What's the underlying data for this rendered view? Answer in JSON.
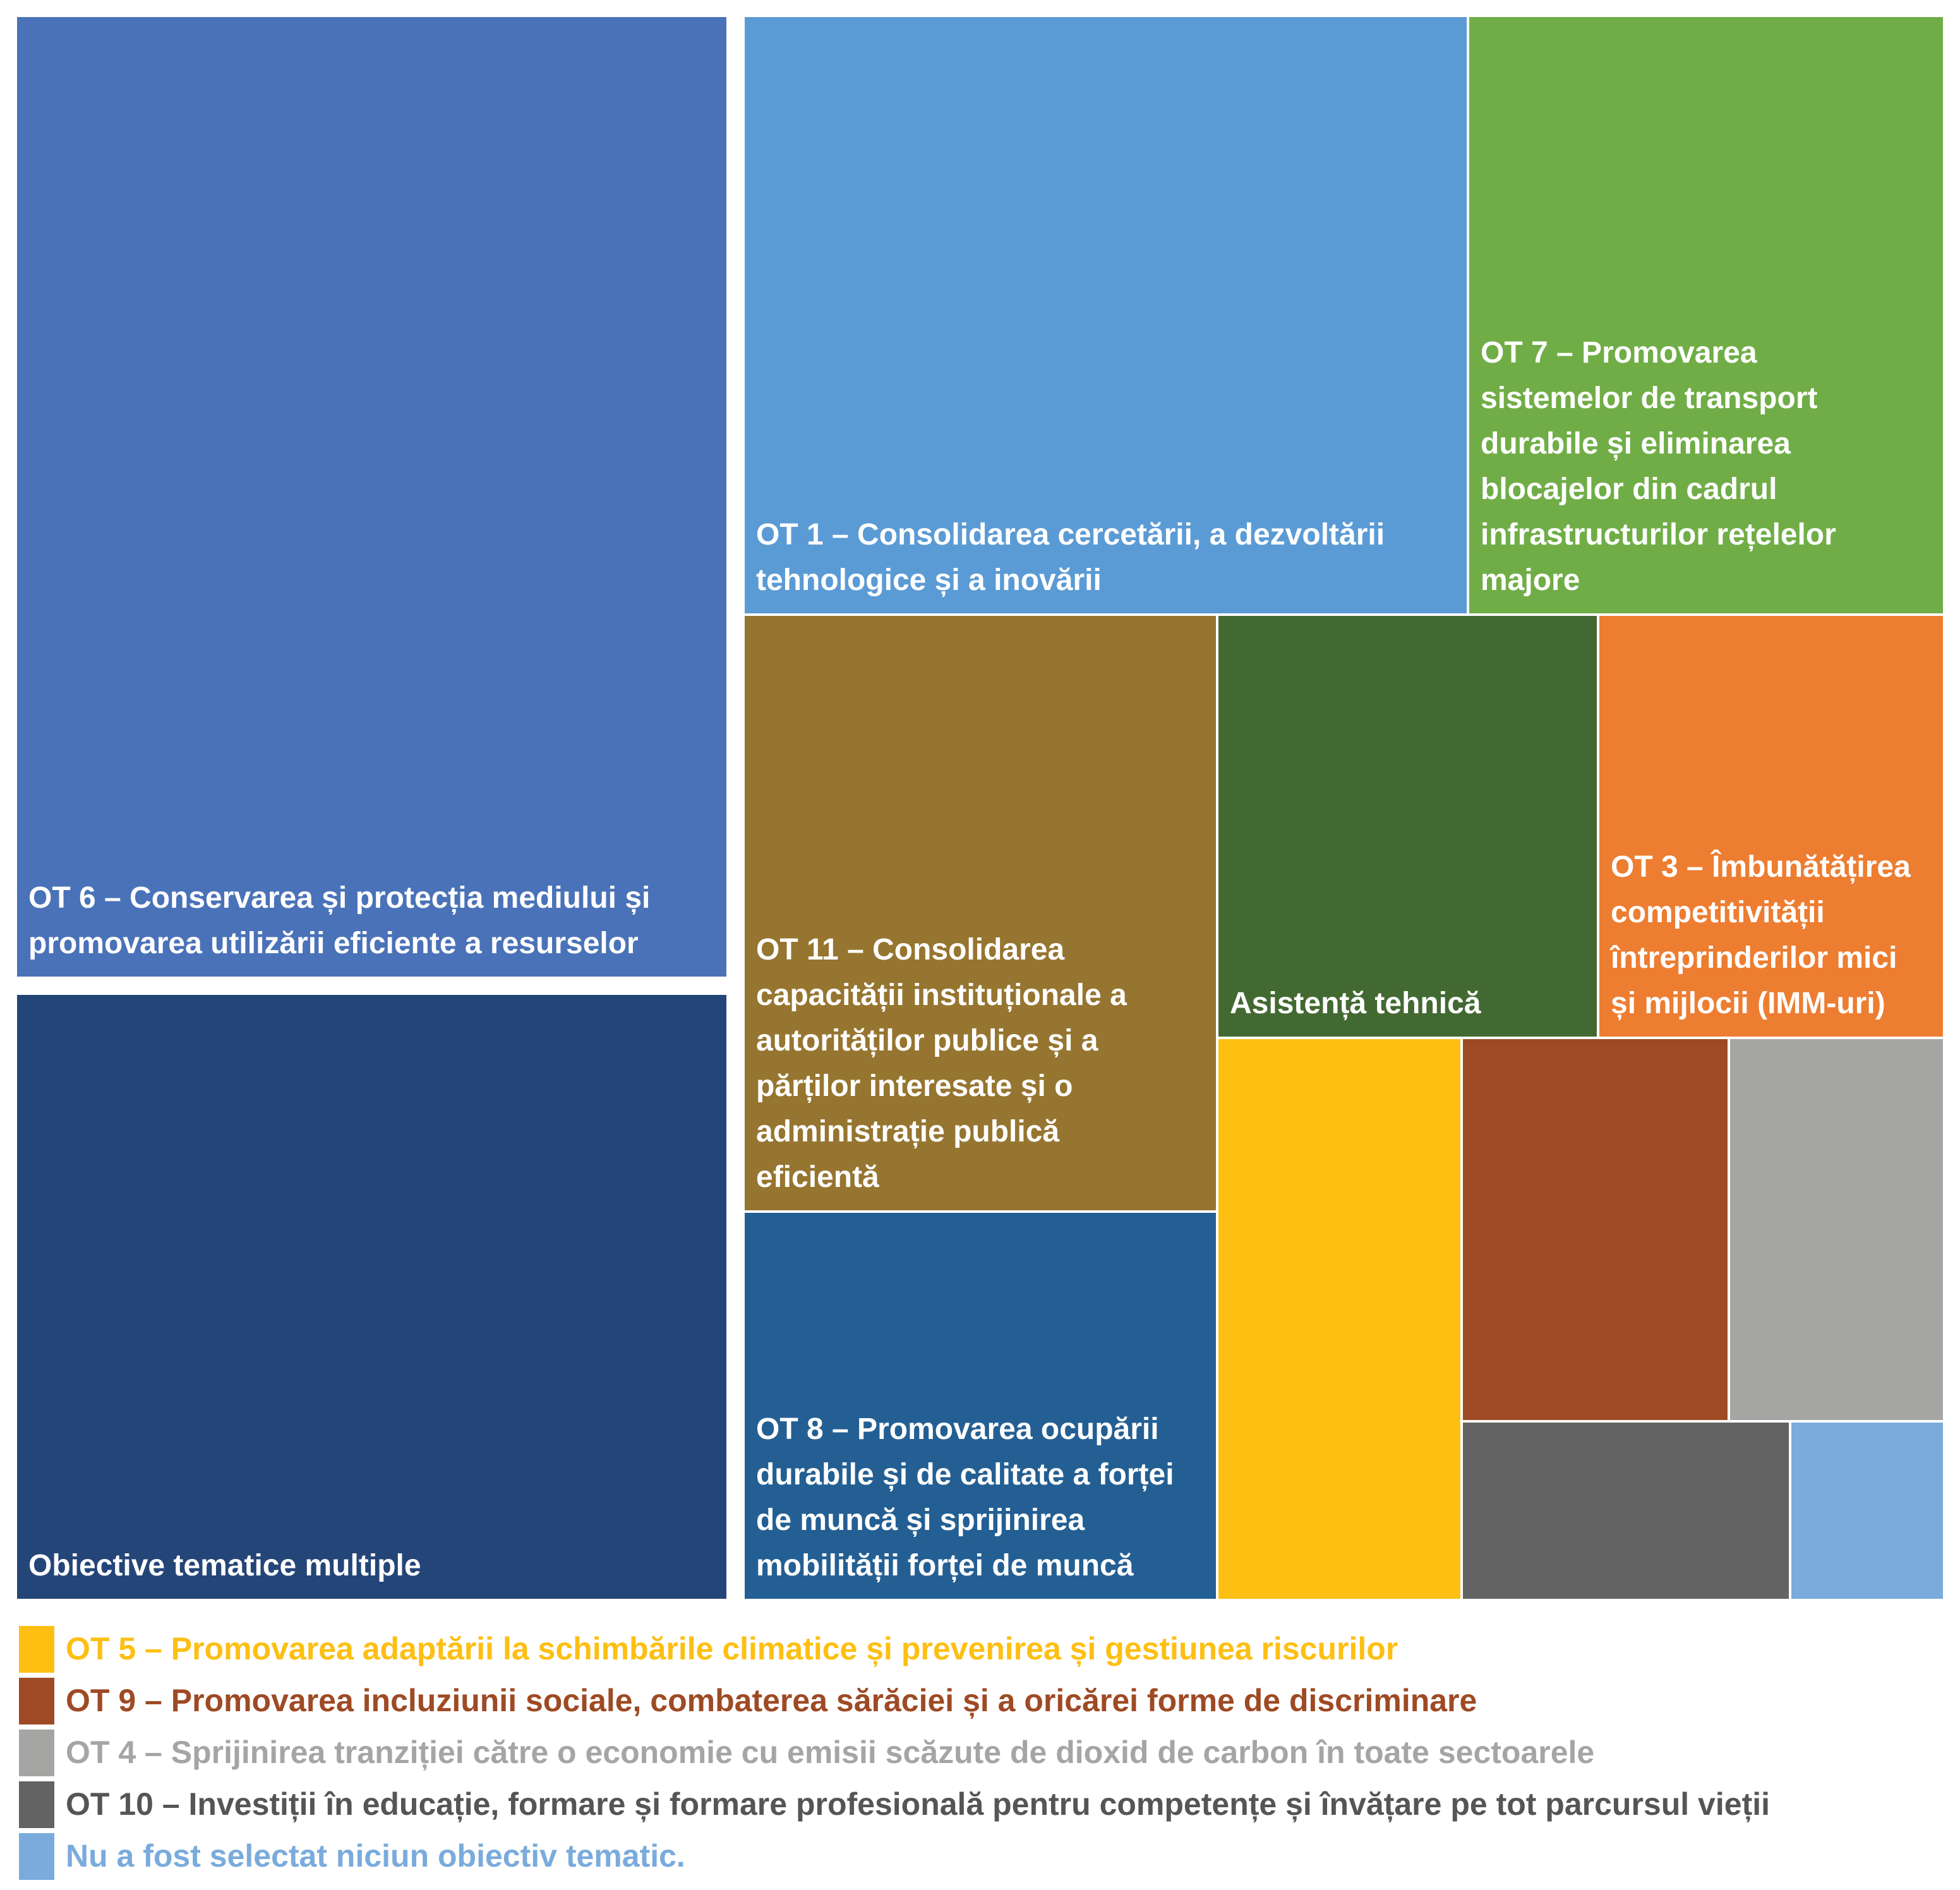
{
  "chart_data": {
    "type": "treemap",
    "title": "",
    "nodes": [
      {
        "key": "ot6",
        "label": "OT 6 – Conservarea și protecția mediului și promovarea utilizării eficiente a resurselor",
        "value": 18.12,
        "color": "#4a72b8"
      },
      {
        "key": "multi",
        "label": "Obiective tematice multiple",
        "value": 15.98,
        "color": "#244577"
      },
      {
        "key": "ot1",
        "label": "OT 1 – Consolidarea cercetării, a dezvoltării tehnologice și a inovării",
        "value": 11.01,
        "color": "#5b9bd5"
      },
      {
        "key": "ot7",
        "label": "OT 7 – Promovarea sistemelor de transport durabile și eliminarea blocajelor din cadrul infrastructurilor rețelelor majore",
        "value": 7.56,
        "color": "#70ad47"
      },
      {
        "key": "ot11",
        "label": "OT 11 – Consolidarea capacității instituționale a autorităților publice și a părților interesate și o administrație publică eficientă",
        "value": 7.31,
        "color": "#967530"
      },
      {
        "key": "ot8",
        "label": "OT 8 – Promovarea ocupării durabile și de calitate a forței de muncă și sprijinirea mobilității forței de muncă",
        "value": 4.84,
        "color": "#245f93"
      },
      {
        "key": "at",
        "label": "Asistență tehnică",
        "value": 4.27,
        "color": "#436932"
      },
      {
        "key": "ot3",
        "label": "OT 3 – Îmbunătățirea competitivității întreprinderilor mici și mijlocii (IMM-uri)",
        "value": 2.8,
        "color": "#ed7d31"
      },
      {
        "key": "ot5",
        "label": "OT 5 – Promovarea adaptării la schimbările climatice și prevenirea și gestiunea riscurilor",
        "value": 3.75,
        "color": "#fdbf12"
      },
      {
        "key": "ot9",
        "label": "OT 9 – Promovarea incluziunii sociale, combaterea sărăciei și a oricărei forme de discriminare",
        "value": 2.63,
        "color": "#9e4a24"
      },
      {
        "key": "ot4",
        "label": "OT 4 – Sprijinirea tranziției către o economie cu emisii scăzute de dioxid de carbon în toate sectoarele",
        "value": 2.63,
        "color": "#a5a5a3"
      },
      {
        "key": "ot10",
        "label": "OT 10 – Investiții în educație, formare și formare profesională pentru competențe și învățare pe tot parcursul vieții",
        "value": 1.52,
        "color": "#636363"
      },
      {
        "key": "none",
        "label": "Nu a fost selectat niciun obiectiv tematic.",
        "value": 0.79,
        "color": "#7aabdc"
      }
    ],
    "tile_labels": [
      {
        "key": "ot6",
        "lines": [
          "OT 6 – Conservarea și protecția mediului și",
          "promovarea utilizării eficiente a resurselor"
        ]
      },
      {
        "key": "multi",
        "lines": [
          "Obiective tematice multiple"
        ]
      },
      {
        "key": "ot1",
        "lines": [
          "OT 1 – Consolidarea cercetării, a dezvoltării",
          "tehnologice și a inovării"
        ]
      },
      {
        "key": "ot7",
        "lines": [
          "OT 7 – Promovarea",
          "sistemelor de transport",
          "durabile și eliminarea",
          "blocajelor din cadrul",
          "infrastructurilor rețelelor",
          "majore"
        ]
      },
      {
        "key": "ot11",
        "lines": [
          "OT 11 – Consolidarea",
          "capacității instituționale a",
          "autorităților publice și a",
          "părților interesate și o",
          "administrație publică",
          "eficientă"
        ]
      },
      {
        "key": "ot8",
        "lines": [
          "OT 8 – Promovarea ocupării",
          "durabile și de calitate a forței",
          "de muncă și sprijinirea",
          "mobilității forței de muncă"
        ]
      },
      {
        "key": "at",
        "lines": [
          "Asistență tehnică"
        ]
      },
      {
        "key": "ot3",
        "lines": [
          "OT 3 – Îmbunătățirea",
          "competitivității",
          "întreprinderilor mici",
          "și mijlocii (IMM-uri)"
        ]
      }
    ],
    "legend": {
      "placement": "bottom",
      "entries": [
        {
          "key": "ot5",
          "label": "OT 5 – Promovarea adaptării la schimbările climatice și prevenirea și gestiunea riscurilor",
          "text_color": "#fdbf12"
        },
        {
          "key": "ot9",
          "label": "OT 9 – Promovarea incluziunii sociale, combaterea sărăciei și a oricărei forme de discriminare",
          "text_color": "#9e4a24"
        },
        {
          "key": "ot4",
          "label": "OT 4 – Sprijinirea tranziției către o economie cu emisii scăzute de dioxid de carbon în toate sectoarele",
          "text_color": "#a5a5a3"
        },
        {
          "key": "ot10",
          "label": "OT 10 – Investiții în educație, formare și formare profesională pentru competențe și învățare pe tot parcursul vieții",
          "text_color": "#555555"
        },
        {
          "key": "none",
          "label": "Nu a fost selectat niciun obiectiv tematic.",
          "text_color": "#7aabdc"
        }
      ]
    }
  }
}
